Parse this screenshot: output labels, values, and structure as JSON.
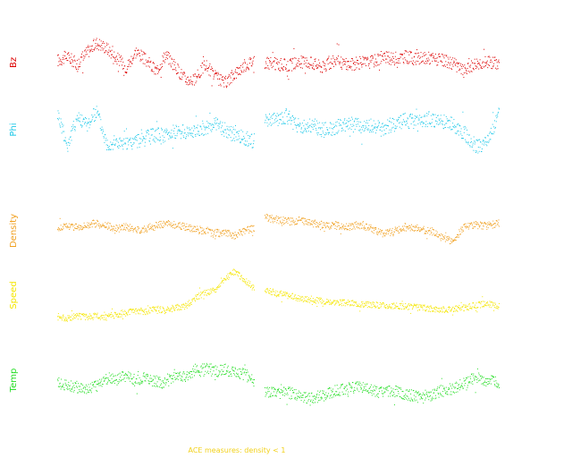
{
  "footnote": {
    "text": "ACE measures: density < 1",
    "color": "#f2d11a"
  },
  "chart_data": [
    {
      "type": "scatter",
      "name": "Bz",
      "ylabel": "Bz",
      "color": "#dd0000",
      "segments": [
        {
          "x": [
            0.0,
            0.05,
            0.1,
            0.15,
            0.2,
            0.25,
            0.3,
            0.35,
            0.4,
            0.45,
            0.5,
            0.55,
            0.6,
            0.65,
            0.7,
            0.75,
            0.8,
            0.85,
            0.9,
            0.95,
            1.0
          ],
          "y": [
            0.55,
            0.62,
            0.48,
            0.7,
            0.88,
            0.78,
            0.6,
            0.42,
            0.72,
            0.55,
            0.35,
            0.66,
            0.42,
            0.2,
            0.18,
            0.48,
            0.25,
            0.12,
            0.3,
            0.45,
            0.55
          ]
        },
        {
          "x": [
            1.0,
            1.05,
            1.1,
            1.15,
            1.2,
            1.25,
            1.3,
            1.35,
            1.4,
            1.45,
            1.5,
            1.55,
            1.6,
            1.65,
            1.7,
            1.75,
            1.8,
            1.85,
            1.9,
            1.95,
            2.0
          ],
          "y": [
            0.5,
            0.48,
            0.45,
            0.52,
            0.5,
            0.42,
            0.55,
            0.47,
            0.5,
            0.52,
            0.6,
            0.58,
            0.62,
            0.57,
            0.6,
            0.55,
            0.5,
            0.35,
            0.5,
            0.52,
            0.5
          ]
        }
      ],
      "spread": 0.12
    },
    {
      "type": "scatter",
      "name": "Phi",
      "ylabel": "Phi",
      "color": "#1ec8e8",
      "segments": [
        {
          "x": [
            0.0,
            0.05,
            0.1,
            0.15,
            0.2,
            0.25,
            0.3,
            0.35,
            0.4,
            0.45,
            0.5,
            0.55,
            0.6,
            0.65,
            0.7,
            0.75,
            0.8,
            0.85,
            0.9,
            0.95,
            1.0
          ],
          "y": [
            0.82,
            0.2,
            0.75,
            0.6,
            0.85,
            0.25,
            0.28,
            0.22,
            0.3,
            0.35,
            0.42,
            0.4,
            0.48,
            0.45,
            0.5,
            0.55,
            0.6,
            0.52,
            0.4,
            0.35,
            0.3
          ]
        },
        {
          "x": [
            1.0,
            1.05,
            1.1,
            1.15,
            1.2,
            1.25,
            1.3,
            1.35,
            1.4,
            1.45,
            1.5,
            1.55,
            1.6,
            1.65,
            1.7,
            1.75,
            1.8,
            1.85,
            1.9,
            1.95,
            2.0
          ],
          "y": [
            0.65,
            0.7,
            0.75,
            0.55,
            0.6,
            0.5,
            0.55,
            0.62,
            0.58,
            0.6,
            0.52,
            0.62,
            0.68,
            0.65,
            0.7,
            0.66,
            0.62,
            0.45,
            0.2,
            0.25,
            0.8
          ]
        }
      ],
      "spread": 0.14
    },
    {
      "type": "scatter",
      "name": "Density",
      "ylabel": "Density",
      "color": "#f0a020",
      "segments": [
        {
          "x": [
            0.0,
            0.05,
            0.1,
            0.15,
            0.2,
            0.25,
            0.3,
            0.35,
            0.4,
            0.45,
            0.5,
            0.55,
            0.6,
            0.65,
            0.7,
            0.75,
            0.8,
            0.85,
            0.9,
            0.95,
            1.0
          ],
          "y": [
            0.55,
            0.6,
            0.58,
            0.62,
            0.65,
            0.6,
            0.55,
            0.58,
            0.52,
            0.55,
            0.6,
            0.65,
            0.62,
            0.58,
            0.55,
            0.5,
            0.45,
            0.48,
            0.42,
            0.5,
            0.55
          ]
        },
        {
          "x": [
            1.0,
            1.05,
            1.1,
            1.15,
            1.2,
            1.25,
            1.3,
            1.35,
            1.4,
            1.45,
            1.5,
            1.55,
            1.6,
            1.65,
            1.7,
            1.75,
            1.8,
            1.85,
            1.9,
            1.95,
            2.0
          ],
          "y": [
            0.75,
            0.72,
            0.68,
            0.7,
            0.65,
            0.62,
            0.6,
            0.58,
            0.62,
            0.55,
            0.45,
            0.5,
            0.58,
            0.55,
            0.5,
            0.42,
            0.3,
            0.58,
            0.62,
            0.6,
            0.65
          ]
        }
      ],
      "spread": 0.07
    },
    {
      "type": "scatter",
      "name": "Speed",
      "ylabel": "Speed",
      "color": "#f5e600",
      "segments": [
        {
          "x": [
            0.0,
            0.05,
            0.1,
            0.15,
            0.2,
            0.25,
            0.3,
            0.35,
            0.4,
            0.45,
            0.5,
            0.55,
            0.6,
            0.65,
            0.7,
            0.75,
            0.8,
            0.85,
            0.9,
            0.95,
            1.0
          ],
          "y": [
            0.1,
            0.08,
            0.12,
            0.1,
            0.12,
            0.1,
            0.15,
            0.18,
            0.22,
            0.2,
            0.25,
            0.22,
            0.28,
            0.3,
            0.45,
            0.55,
            0.6,
            0.8,
            0.95,
            0.8,
            0.62
          ]
        },
        {
          "x": [
            1.0,
            1.05,
            1.1,
            1.15,
            1.2,
            1.25,
            1.3,
            1.35,
            1.4,
            1.45,
            1.5,
            1.55,
            1.6,
            1.65,
            1.7,
            1.75,
            1.8,
            1.85,
            1.9,
            1.95,
            2.0
          ],
          "y": [
            0.6,
            0.55,
            0.5,
            0.45,
            0.42,
            0.4,
            0.38,
            0.36,
            0.35,
            0.33,
            0.32,
            0.3,
            0.3,
            0.28,
            0.26,
            0.24,
            0.25,
            0.27,
            0.32,
            0.35,
            0.3
          ]
        }
      ],
      "spread": 0.06
    },
    {
      "type": "scatter",
      "name": "Temp",
      "ylabel": "Temp",
      "color": "#22dd22",
      "segments": [
        {
          "x": [
            0.0,
            0.05,
            0.1,
            0.15,
            0.2,
            0.25,
            0.3,
            0.35,
            0.4,
            0.45,
            0.5,
            0.55,
            0.6,
            0.65,
            0.7,
            0.75,
            0.8,
            0.85,
            0.9,
            0.95,
            1.0
          ],
          "y": [
            0.45,
            0.42,
            0.38,
            0.35,
            0.4,
            0.55,
            0.52,
            0.58,
            0.5,
            0.55,
            0.48,
            0.45,
            0.62,
            0.58,
            0.7,
            0.72,
            0.68,
            0.7,
            0.65,
            0.62,
            0.5
          ]
        },
        {
          "x": [
            1.0,
            1.05,
            1.1,
            1.15,
            1.2,
            1.25,
            1.3,
            1.35,
            1.4,
            1.45,
            1.5,
            1.55,
            1.6,
            1.65,
            1.7,
            1.75,
            1.8,
            1.85,
            1.9,
            1.95,
            2.0
          ],
          "y": [
            0.3,
            0.25,
            0.28,
            0.2,
            0.18,
            0.22,
            0.3,
            0.35,
            0.4,
            0.32,
            0.28,
            0.3,
            0.25,
            0.2,
            0.22,
            0.3,
            0.35,
            0.45,
            0.55,
            0.5,
            0.45
          ]
        }
      ],
      "spread": 0.11
    }
  ]
}
